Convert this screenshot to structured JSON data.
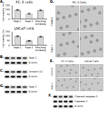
{
  "chart_data": [
    {
      "type": "bar",
      "panel": "A.",
      "title": "PC-3 cells",
      "y_label": "Cell viability (%)",
      "categories": [
        "Sept-1",
        "Sept-1",
        "Blocking Antibody"
      ],
      "values": [
        100,
        60,
        98
      ],
      "errors": [
        6,
        5,
        6
      ],
      "color": "#d9d9d9",
      "ylim": [
        0,
        150
      ],
      "yticks": [
        0,
        50,
        100,
        150
      ],
      "grid": false
    },
    {
      "type": "bar",
      "title": "LNCaP cells",
      "y_label": "Cell viability (%)",
      "categories": [
        "Sept-1",
        "Sept-1",
        "Blocking Antibody"
      ],
      "values": [
        100,
        50,
        95
      ],
      "errors": [
        6,
        5,
        6
      ],
      "color": "#d9d9d9",
      "ylim": [
        0,
        150
      ],
      "yticks": [
        0,
        50,
        100,
        150
      ],
      "grid": false
    }
  ],
  "figure": {
    "B": {
      "label": "B.",
      "rows": [
        "Sept-1",
        "β-Actin"
      ]
    },
    "C": {
      "label": "C.",
      "rows": [
        "Annexin A2",
        "β-Actin"
      ]
    },
    "D": {
      "label": "D.",
      "header": "PC-3 Cells",
      "rows": [
        "Control",
        "Sept-1"
      ]
    },
    "E": {
      "label": "E.",
      "columns": [
        "PC-3 Cells",
        "LNCaP Cells"
      ],
      "rows": [
        "Control",
        "Sept-1"
      ]
    },
    "F": {
      "label": "F.",
      "rows": [
        "Cleaved caspase-3",
        "Caspase-3",
        "β-Actin"
      ]
    },
    "G": {
      "label": "G.",
      "rows": [
        "Sept-1",
        "β-Actin"
      ]
    }
  }
}
